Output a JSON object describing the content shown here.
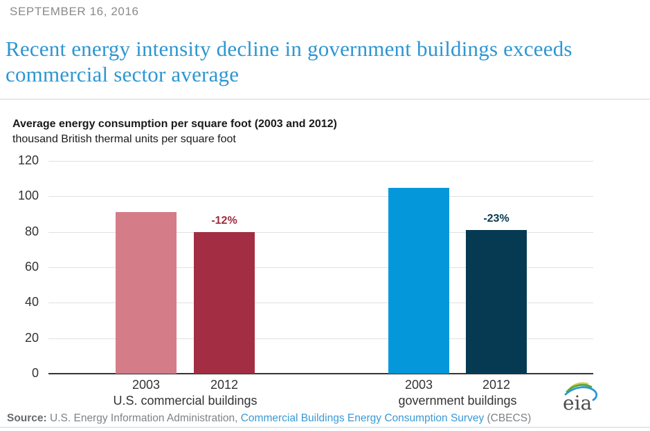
{
  "article": {
    "date": "SEPTEMBER 16, 2016",
    "headline": "Recent energy intensity decline in government buildings exceeds commercial sector average"
  },
  "chart_data": {
    "type": "bar",
    "title": "Average energy consumption per square foot (2003 and 2012)",
    "subtitle": "thousand British thermal units per square foot",
    "ylabel": "thousand British thermal units per square foot",
    "ylim": [
      0,
      120
    ],
    "yticks": [
      0,
      20,
      40,
      60,
      80,
      100,
      120
    ],
    "grid": true,
    "axis_color": "#333333",
    "gridline_color": "#e0e0e0",
    "groups": [
      {
        "label": "U.S. commercial buildings",
        "bars": [
          {
            "category": "2003",
            "value": 91,
            "color": "#d47c88"
          },
          {
            "category": "2012",
            "value": 80,
            "color": "#a32e43",
            "annotation": "-12%",
            "annotation_color": "#9e2b3e"
          }
        ]
      },
      {
        "label": "government buildings",
        "bars": [
          {
            "category": "2003",
            "value": 105,
            "color": "#0498da"
          },
          {
            "category": "2012",
            "value": 81,
            "color": "#063a52",
            "annotation": "-23%",
            "annotation_color": "#063a52"
          }
        ]
      }
    ]
  },
  "logo": {
    "text": "eia"
  },
  "footer": {
    "source_label": "Source:",
    "source_text": "U.S. Energy Information Administration,",
    "source_link": "Commercial Buildings Energy Consumption Survey",
    "source_suffix": "(CBECS)"
  },
  "colors": {
    "headline": "#2e96d2",
    "date_text": "#8a8a8a",
    "commercial_2003": "#d47c88",
    "commercial_2012": "#a32e43",
    "government_2003": "#0498da",
    "government_2012": "#063a52",
    "link": "#3a99d4"
  }
}
